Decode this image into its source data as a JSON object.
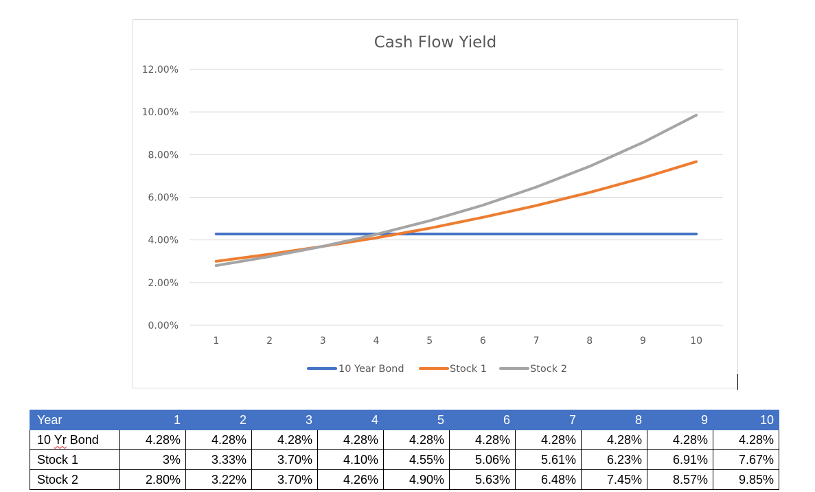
{
  "chart_data": {
    "type": "line",
    "title": "Cash Flow Yield",
    "x": [
      1,
      2,
      3,
      4,
      5,
      6,
      7,
      8,
      9,
      10
    ],
    "x_tick_labels": [
      "1",
      "2",
      "3",
      "4",
      "5",
      "6",
      "7",
      "8",
      "9",
      "10"
    ],
    "y_tick_values": [
      0,
      0.02,
      0.04,
      0.06,
      0.08,
      0.1,
      0.12
    ],
    "y_tick_labels": [
      "0.00%",
      "2.00%",
      "4.00%",
      "6.00%",
      "8.00%",
      "10.00%",
      "12.00%"
    ],
    "ylim": [
      0,
      0.12
    ],
    "grid": true,
    "legend_position": "bottom",
    "xlabel": "",
    "ylabel": "",
    "series": [
      {
        "name": "10 Year Bond",
        "color": "#4472c4",
        "values": [
          0.0428,
          0.0428,
          0.0428,
          0.0428,
          0.0428,
          0.0428,
          0.0428,
          0.0428,
          0.0428,
          0.0428
        ]
      },
      {
        "name": "Stock 1",
        "color": "#ed7d31",
        "values": [
          0.03,
          0.0333,
          0.037,
          0.041,
          0.0455,
          0.0506,
          0.0561,
          0.0623,
          0.0691,
          0.0767
        ]
      },
      {
        "name": "Stock 2",
        "color": "#a5a5a5",
        "values": [
          0.028,
          0.0322,
          0.037,
          0.0426,
          0.049,
          0.0563,
          0.0648,
          0.0745,
          0.0857,
          0.0985
        ]
      }
    ]
  },
  "table": {
    "header_label": "Year",
    "years": [
      "1",
      "2",
      "3",
      "4",
      "5",
      "6",
      "7",
      "8",
      "9",
      "10"
    ],
    "rows": [
      {
        "label": "10 Yr Bond",
        "label_parts": [
          "10 ",
          "Yr",
          " Bond"
        ],
        "values": [
          "4.28%",
          "4.28%",
          "4.28%",
          "4.28%",
          "4.28%",
          "4.28%",
          "4.28%",
          "4.28%",
          "4.28%",
          "4.28%"
        ]
      },
      {
        "label": "Stock 1",
        "values": [
          "3%",
          "3.33%",
          "3.70%",
          "4.10%",
          "4.55%",
          "5.06%",
          "5.61%",
          "6.23%",
          "6.91%",
          "7.67%"
        ]
      },
      {
        "label": "Stock 2",
        "values": [
          "2.80%",
          "3.22%",
          "3.70%",
          "4.26%",
          "4.90%",
          "5.63%",
          "6.48%",
          "7.45%",
          "8.57%",
          "9.85%"
        ]
      }
    ],
    "header_color": "#4472c4",
    "header_text_color": "#ffffff"
  }
}
